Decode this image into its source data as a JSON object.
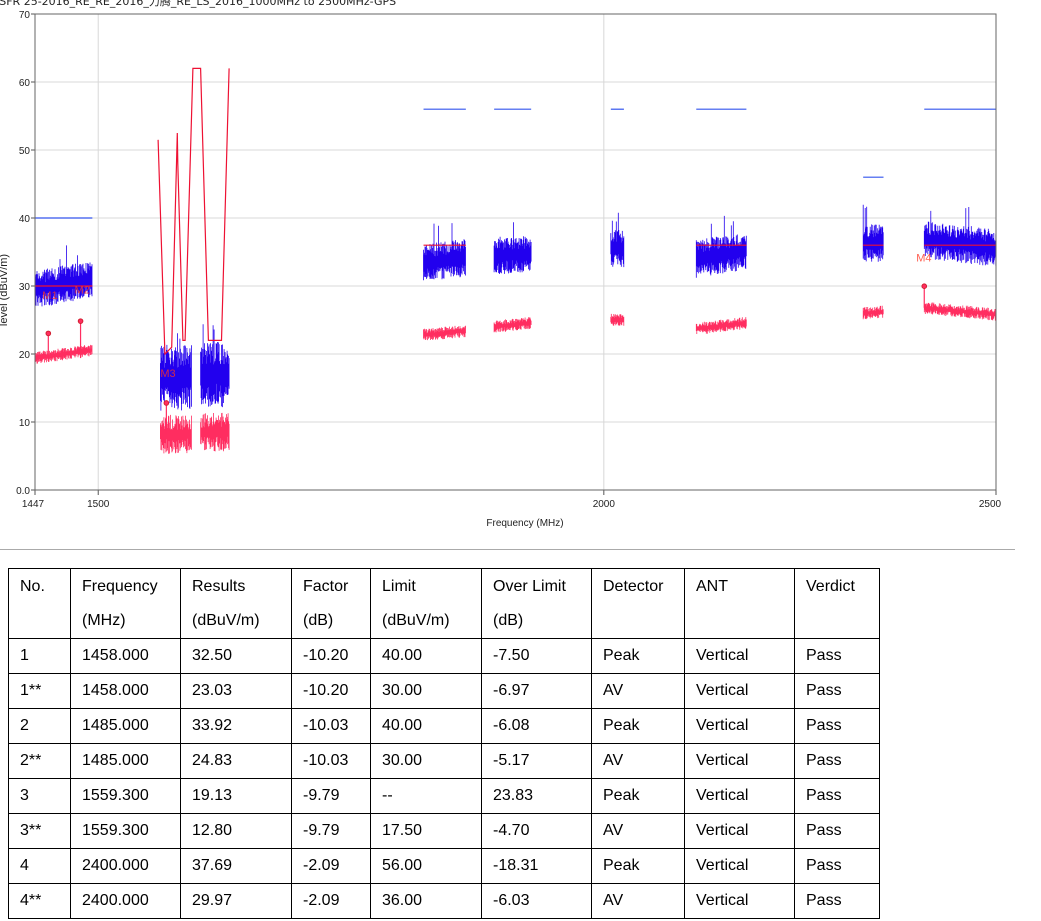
{
  "chart_data": {
    "type": "line",
    "title": "ISFR 25-2016_RE_RE_2016_力腾_RE_LS_2016_1000MHz to 2500MHz-GPS",
    "xlabel": "Frequency (MHz)",
    "ylabel": "level (dBuV/m)",
    "xscale": "log",
    "xlim": [
      1447,
      2500
    ],
    "ylim": [
      0,
      70
    ],
    "xticks": [
      1447,
      1500,
      2000,
      2500
    ],
    "yticks": [
      0,
      10,
      20,
      30,
      40,
      50,
      60,
      70
    ],
    "ytick_labels": [
      "0.0",
      "10",
      "20",
      "30",
      "40",
      "50",
      "60",
      "70"
    ],
    "grid": true,
    "colors": {
      "peak": "#2200ee",
      "average": "#ff2d60",
      "peak_limit": "#3355ee",
      "average_limit": "#ee1133",
      "marker_label": "#ff3322"
    },
    "segments": [
      {
        "f_start": 1447,
        "f_end": 1495,
        "peak_level": [
          29.5,
          31.0
        ],
        "avg_level": [
          19.4,
          20.6
        ],
        "peak_limit": 40,
        "avg_limit": 30
      },
      {
        "f_start": 1554,
        "f_end": 1582,
        "peak_level": [
          16.5,
          16.5
        ],
        "avg_level": [
          8.2,
          8.2
        ],
        "wide": true
      },
      {
        "f_start": 1590,
        "f_end": 1616,
        "peak_level": [
          17.0,
          17.0
        ],
        "avg_level": [
          8.5,
          8.5
        ],
        "wide": true
      },
      {
        "f_start": 1805,
        "f_end": 1849,
        "peak_level": [
          33.3,
          34.2
        ],
        "avg_level": [
          22.8,
          23.4
        ],
        "peak_limit": 56,
        "avg_limit": 36
      },
      {
        "f_start": 1879,
        "f_end": 1919,
        "peak_level": [
          34.5,
          34.7
        ],
        "avg_level": [
          24.0,
          24.6
        ],
        "peak_limit": 56
      },
      {
        "f_start": 2008,
        "f_end": 2023,
        "peak_level": [
          35.5,
          35.5
        ],
        "avg_level": [
          25.0,
          25.0
        ],
        "peak_limit": 56
      },
      {
        "f_start": 2108,
        "f_end": 2169,
        "peak_level": [
          34.0,
          35.2
        ],
        "avg_level": [
          23.7,
          24.6
        ],
        "peak_limit": 56,
        "avg_limit": 36
      },
      {
        "f_start": 2318,
        "f_end": 2345,
        "peak_level": [
          36.3,
          36.3
        ],
        "avg_level": [
          26.0,
          26.2
        ],
        "peak_limit": 46,
        "avg_limit": 36
      },
      {
        "f_start": 2400,
        "f_end": 2500,
        "peak_level": [
          36.8,
          35.6
        ],
        "avg_level": [
          26.8,
          25.8
        ],
        "peak_limit": 56,
        "avg_limit": 36
      }
    ],
    "gps_limit_envelope": [
      [
        1552,
        51.5
      ],
      [
        1558,
        20
      ],
      [
        1564,
        21
      ],
      [
        1569,
        52.5
      ],
      [
        1569.5,
        48
      ],
      [
        1574,
        22
      ],
      [
        1576,
        22
      ],
      [
        1583,
        62
      ],
      [
        1590,
        62
      ],
      [
        1597,
        22
      ],
      [
        1609,
        22
      ],
      [
        1616,
        62
      ]
    ],
    "markers": [
      {
        "label": "M1",
        "freq": 1458.0,
        "level": 29.0
      },
      {
        "label": "M2",
        "freq": 1485.0,
        "level": 29.8
      },
      {
        "label": "M3",
        "freq": 1559.3,
        "level": 17.5
      },
      {
        "label": "M4",
        "freq": 2400.0,
        "level": 34.5
      }
    ],
    "avg_points": [
      {
        "freq": 1458.0,
        "level": 23.03
      },
      {
        "freq": 1485.0,
        "level": 24.83
      },
      {
        "freq": 1559.3,
        "level": 12.8
      },
      {
        "freq": 2400.0,
        "level": 29.97
      }
    ]
  },
  "table": {
    "headers": [
      [
        "No.",
        ""
      ],
      [
        "Frequency",
        "(MHz)"
      ],
      [
        "Results",
        "(dBuV/m)"
      ],
      [
        "Factor",
        "(dB)"
      ],
      [
        "Limit",
        "(dBuV/m)"
      ],
      [
        "Over Limit",
        "(dB)"
      ],
      [
        "Detector",
        ""
      ],
      [
        "ANT",
        ""
      ],
      [
        "Verdict",
        ""
      ]
    ],
    "rows": [
      [
        "1",
        "1458.000",
        "32.50",
        "-10.20",
        "40.00",
        "-7.50",
        "Peak",
        "Vertical",
        "Pass"
      ],
      [
        "1**",
        "1458.000",
        "23.03",
        "-10.20",
        "30.00",
        "-6.97",
        "AV",
        "Vertical",
        "Pass"
      ],
      [
        "2",
        "1485.000",
        "33.92",
        "-10.03",
        "40.00",
        "-6.08",
        "Peak",
        "Vertical",
        "Pass"
      ],
      [
        "2**",
        "1485.000",
        "24.83",
        "-10.03",
        "30.00",
        "-5.17",
        "AV",
        "Vertical",
        "Pass"
      ],
      [
        "3",
        "1559.300",
        "19.13",
        "-9.79",
        "--",
        "23.83",
        "Peak",
        "Vertical",
        "Pass"
      ],
      [
        "3**",
        "1559.300",
        "12.80",
        "-9.79",
        "17.50",
        "-4.70",
        "AV",
        "Vertical",
        "Pass"
      ],
      [
        "4",
        "2400.000",
        "37.69",
        "-2.09",
        "56.00",
        "-18.31",
        "Peak",
        "Vertical",
        "Pass"
      ],
      [
        "4**",
        "2400.000",
        "29.97",
        "-2.09",
        "36.00",
        "-6.03",
        "AV",
        "Vertical",
        "Pass"
      ]
    ]
  }
}
